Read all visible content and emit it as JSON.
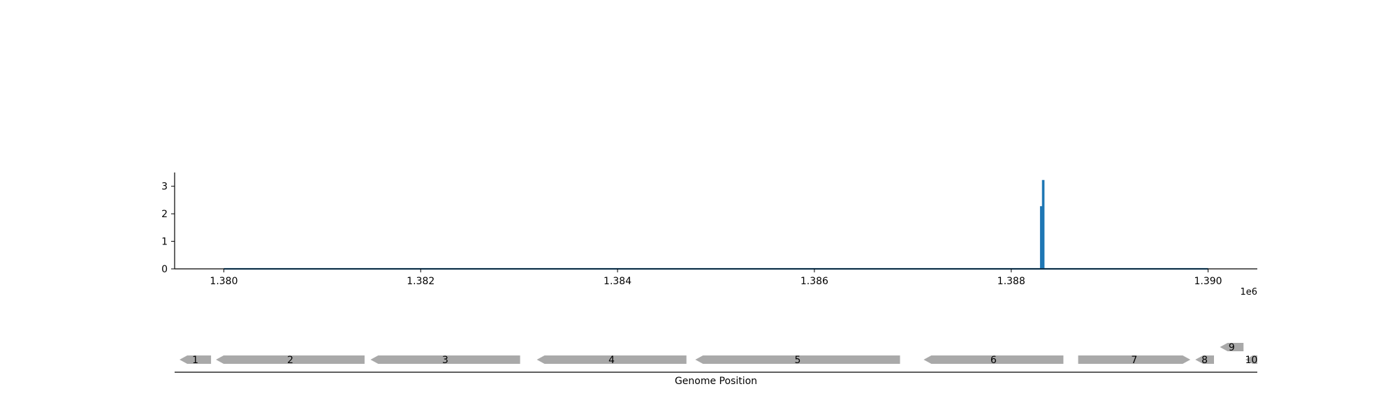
{
  "chart_data": [
    {
      "type": "line",
      "title": "",
      "xlabel": "",
      "ylabel": "",
      "x_offset_label": "1e6",
      "xlim": [
        1.3795,
        1.3905
      ],
      "ylim": [
        0,
        3.5
      ],
      "x_ticks": [
        1.38,
        1.382,
        1.384,
        1.386,
        1.388,
        1.39
      ],
      "x_tick_labels": [
        "1.380",
        "1.382",
        "1.384",
        "1.386",
        "1.388",
        "1.390"
      ],
      "y_ticks": [
        0,
        1,
        2,
        3
      ],
      "y_tick_labels": [
        "0",
        "1",
        "2",
        "3"
      ],
      "grid": false,
      "series": [
        {
          "color": "#1f77b4",
          "x": [
            1.38,
            1.3883,
            1.3883,
            1.38831,
            1.38831,
            1.38832,
            1.38832,
            1.38833,
            1.38833,
            1.39
          ],
          "y": [
            0,
            0,
            2.25,
            2.25,
            0,
            0,
            3.2,
            3.2,
            0,
            0
          ]
        }
      ]
    },
    {
      "type": "gene-track",
      "xlabel": "Genome Position",
      "gene_color": "#a9a9a9",
      "genes": [
        {
          "label": "1",
          "start": 1.37955,
          "end": 1.37987,
          "strand": "-",
          "row": 0
        },
        {
          "label": "2",
          "start": 1.37992,
          "end": 1.38143,
          "strand": "-",
          "row": 0
        },
        {
          "label": "3",
          "start": 1.38149,
          "end": 1.38301,
          "strand": "-",
          "row": 0
        },
        {
          "label": "4",
          "start": 1.38318,
          "end": 1.3847,
          "strand": "-",
          "row": 0
        },
        {
          "label": "5",
          "start": 1.38479,
          "end": 1.38687,
          "strand": "-",
          "row": 0
        },
        {
          "label": "6",
          "start": 1.38711,
          "end": 1.38853,
          "strand": "-",
          "row": 0
        },
        {
          "label": "7",
          "start": 1.38868,
          "end": 1.38982,
          "strand": "+",
          "row": 0
        },
        {
          "label": "8",
          "start": 1.38987,
          "end": 1.39006,
          "strand": "-",
          "row": 0
        },
        {
          "label": "9",
          "start": 1.39012,
          "end": 1.39036,
          "strand": "-",
          "row": 1
        },
        {
          "label": "10",
          "start": 1.39038,
          "end": 1.3905,
          "strand": "-",
          "row": 0
        }
      ]
    }
  ]
}
